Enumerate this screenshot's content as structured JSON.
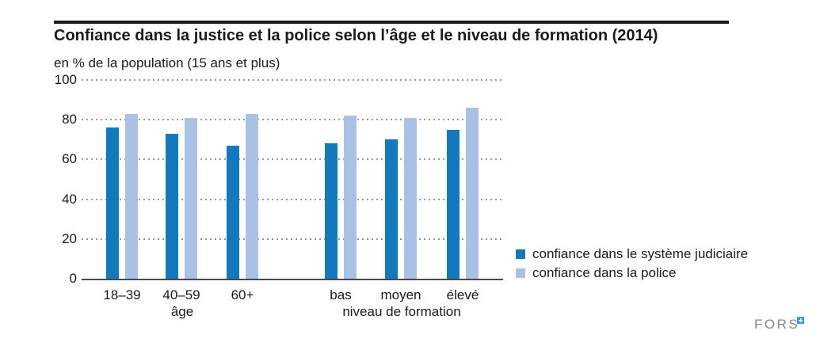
{
  "header": {
    "title": "Confiance dans la justice et la police selon l’âge et le niveau de formation (2014)",
    "subtitle": "en % de la population (15 ans et plus)"
  },
  "chart_data": {
    "type": "bar",
    "title": "Confiance dans la justice et la police selon l’âge et le niveau de formation (2014)",
    "unit_label": "en % de la population (15 ans et plus)",
    "categories": [
      "18–39",
      "40–59",
      "60+",
      "bas",
      "moyen",
      "élevé"
    ],
    "group_labels": [
      {
        "label": "âge",
        "span": [
          0,
          3
        ]
      },
      {
        "label": "niveau de formation",
        "span": [
          3,
          6
        ]
      }
    ],
    "series": [
      {
        "name": "confiance dans le système judiciaire",
        "color": "#1478bd",
        "values": [
          76,
          73,
          67,
          68,
          70,
          75
        ]
      },
      {
        "name": "confiance dans la police",
        "color": "#a8c1e4",
        "values": [
          83,
          81,
          83,
          82,
          81,
          86
        ]
      }
    ],
    "y_ticks": [
      0,
      20,
      40,
      60,
      80,
      100
    ],
    "ylim": [
      0,
      100
    ],
    "ylabel": "",
    "xlabel": "",
    "grid": "horizontal-dotted",
    "legend_position": "right",
    "colors": {
      "grid": "#999999",
      "axis": "#4a4a4a"
    }
  },
  "footer": {
    "logo_text": "FORS",
    "logo_mark": "plus-square-icon",
    "logo_mark_color": "#2f9ed9"
  }
}
